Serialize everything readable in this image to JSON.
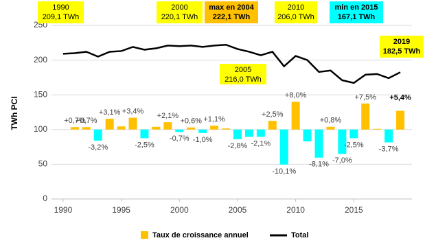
{
  "chart_data": {
    "type": "bar-line",
    "y_label": "TWh PCI",
    "x": [
      1990,
      1991,
      1992,
      1993,
      1994,
      1995,
      1996,
      1997,
      1998,
      1999,
      2000,
      2001,
      2002,
      2003,
      2004,
      2005,
      2006,
      2007,
      2008,
      2009,
      2010,
      2011,
      2012,
      2013,
      2014,
      2015,
      2016,
      2017,
      2018,
      2019
    ],
    "xlim": [
      1989,
      2020
    ],
    "xticks": [
      1990,
      1995,
      2000,
      2005,
      2010,
      2015
    ],
    "ylim": [
      0,
      250
    ],
    "yticks": [
      0,
      50,
      100,
      150,
      200,
      250
    ],
    "grid": true,
    "series": [
      {
        "name": "Taux de croissance annuel",
        "color": "#ffc000",
        "negative_color": "#00ffff",
        "values": [
          null,
          0.7,
          0.7,
          -3.2,
          3.1,
          0.9,
          3.4,
          -2.5,
          0.8,
          2.1,
          -0.7,
          0.6,
          -1.0,
          1.1,
          0.3,
          -2.8,
          -2.1,
          -2.1,
          2.5,
          -10.1,
          8.0,
          -3.4,
          -8.1,
          0.8,
          -7.0,
          -2.5,
          7.5,
          0.2,
          -3.7,
          5.4
        ],
        "value_labels": [
          null,
          "+0,7%",
          "+0,7%",
          "-3,2%",
          "+3,1%",
          null,
          "+3,4%",
          "-2,5%",
          null,
          "+2,1%",
          "-0,7%",
          "+0,6%",
          "-1,0%",
          "+1,1%",
          null,
          "-2,8%",
          null,
          "-2,1%",
          "+2,5%",
          "-10,1%",
          "+8,0%",
          null,
          "-8,1%",
          "+0,8%",
          "-7,0%",
          "-2,5%",
          "+7,5%",
          null,
          "-3,7%",
          "+5,4%"
        ]
      },
      {
        "name": "Total",
        "color": "#000000",
        "values": [
          209.1,
          210,
          212,
          205,
          212,
          213,
          219,
          215,
          217,
          221,
          220.1,
          221,
          219,
          221,
          222.1,
          216.0,
          212,
          207,
          212,
          191,
          206.0,
          200,
          183,
          185,
          171,
          167.1,
          179,
          180,
          174,
          182.5
        ]
      }
    ],
    "annotations": [
      {
        "lines": [
          "1990",
          "209,1 TWh"
        ],
        "color": "#ffff00"
      },
      {
        "lines": [
          "2000",
          "220,1 TWh"
        ],
        "color": "#ffff00"
      },
      {
        "lines": [
          "max en 2004",
          "222,1 TWh"
        ],
        "color": "#ffc000"
      },
      {
        "lines": [
          "2010",
          "206,0 TWh"
        ],
        "color": "#ffff00"
      },
      {
        "lines": [
          "min en 2015",
          "167,1 TWh"
        ],
        "color": "#00ffff"
      },
      {
        "lines": [
          "2019",
          "182,5 TWh"
        ],
        "color": "#ffff00"
      },
      {
        "lines": [
          "2005",
          "216,0 TWh"
        ],
        "color": "#ffff00"
      }
    ]
  }
}
